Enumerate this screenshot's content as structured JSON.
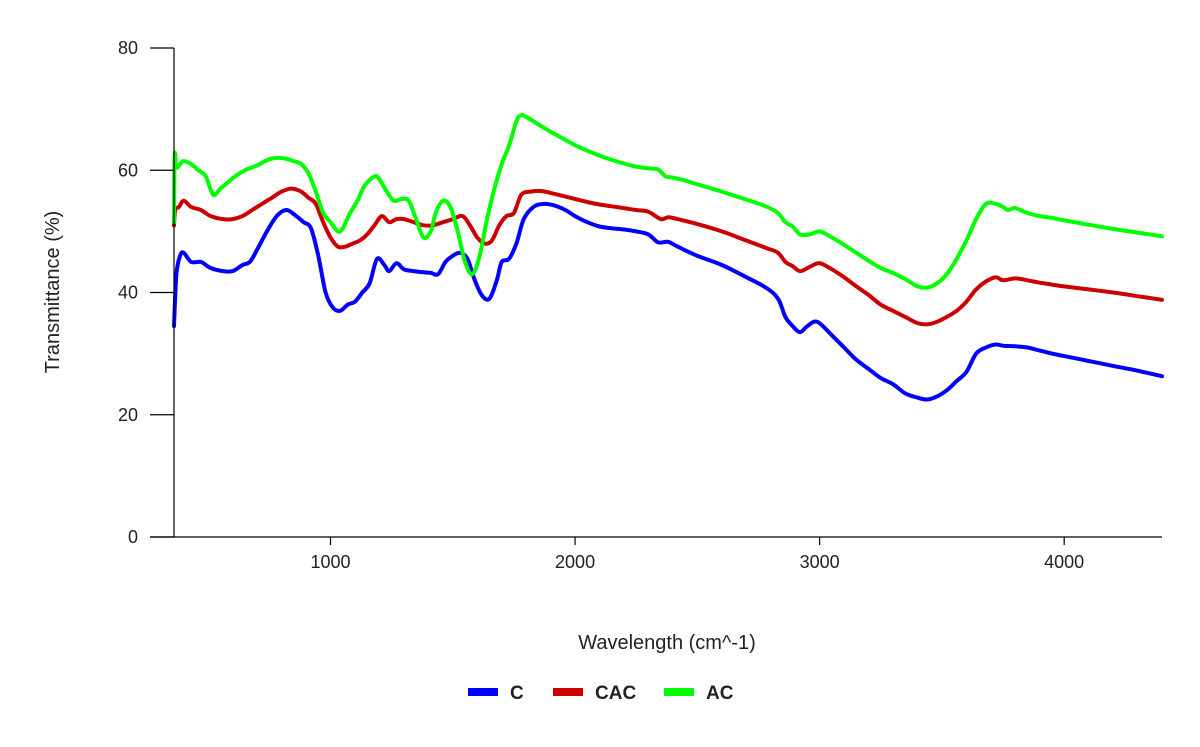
{
  "chart_data": {
    "type": "line",
    "title": "",
    "xlabel": "Wavelength (cm^-1)",
    "ylabel": "Transmittance (%)",
    "xlim": [
      360,
      4400
    ],
    "ylim": [
      0,
      80
    ],
    "x_ticks": [
      1000,
      2000,
      3000,
      4000
    ],
    "y_ticks": [
      0,
      20,
      40,
      60,
      80
    ],
    "grid": false,
    "legend_position": "bottom",
    "series": [
      {
        "name": "C",
        "color": "#0000ff",
        "points": [
          [
            360,
            34.5
          ],
          [
            370,
            43
          ],
          [
            385,
            46
          ],
          [
            400,
            46.5
          ],
          [
            430,
            45
          ],
          [
            470,
            45
          ],
          [
            510,
            44
          ],
          [
            560,
            43.5
          ],
          [
            600,
            43.5
          ],
          [
            640,
            44.5
          ],
          [
            670,
            45
          ],
          [
            700,
            47
          ],
          [
            740,
            50
          ],
          [
            780,
            52.5
          ],
          [
            820,
            53.5
          ],
          [
            860,
            52.5
          ],
          [
            890,
            51.5
          ],
          [
            920,
            50.5
          ],
          [
            950,
            46
          ],
          [
            980,
            40
          ],
          [
            1010,
            37.5
          ],
          [
            1040,
            37
          ],
          [
            1070,
            38
          ],
          [
            1100,
            38.5
          ],
          [
            1130,
            40
          ],
          [
            1160,
            41.5
          ],
          [
            1190,
            45.5
          ],
          [
            1220,
            44.5
          ],
          [
            1240,
            43.5
          ],
          [
            1270,
            44.8
          ],
          [
            1300,
            43.8
          ],
          [
            1340,
            43.5
          ],
          [
            1380,
            43.3
          ],
          [
            1410,
            43.2
          ],
          [
            1440,
            43
          ],
          [
            1470,
            45
          ],
          [
            1500,
            46
          ],
          [
            1530,
            46.5
          ],
          [
            1560,
            45.5
          ],
          [
            1590,
            42
          ],
          [
            1620,
            39.5
          ],
          [
            1650,
            39
          ],
          [
            1680,
            42
          ],
          [
            1700,
            45
          ],
          [
            1730,
            45.5
          ],
          [
            1760,
            48
          ],
          [
            1790,
            52
          ],
          [
            1830,
            54
          ],
          [
            1870,
            54.5
          ],
          [
            1910,
            54.3
          ],
          [
            1960,
            53.5
          ],
          [
            2000,
            52.5
          ],
          [
            2050,
            51.5
          ],
          [
            2100,
            50.8
          ],
          [
            2150,
            50.5
          ],
          [
            2200,
            50.3
          ],
          [
            2250,
            50
          ],
          [
            2300,
            49.5
          ],
          [
            2340,
            48.2
          ],
          [
            2380,
            48.3
          ],
          [
            2420,
            47.5
          ],
          [
            2500,
            46
          ],
          [
            2600,
            44.5
          ],
          [
            2700,
            42.5
          ],
          [
            2780,
            40.8
          ],
          [
            2830,
            39
          ],
          [
            2860,
            36
          ],
          [
            2890,
            34.5
          ],
          [
            2920,
            33.5
          ],
          [
            2950,
            34.5
          ],
          [
            2990,
            35.2
          ],
          [
            3050,
            33
          ],
          [
            3100,
            31
          ],
          [
            3150,
            29
          ],
          [
            3200,
            27.5
          ],
          [
            3250,
            26
          ],
          [
            3300,
            25
          ],
          [
            3350,
            23.5
          ],
          [
            3400,
            22.8
          ],
          [
            3440,
            22.5
          ],
          [
            3480,
            23
          ],
          [
            3520,
            24
          ],
          [
            3560,
            25.5
          ],
          [
            3600,
            27
          ],
          [
            3640,
            30
          ],
          [
            3680,
            31
          ],
          [
            3720,
            31.5
          ],
          [
            3750,
            31.3
          ],
          [
            3800,
            31.2
          ],
          [
            3850,
            31
          ],
          [
            3900,
            30.5
          ],
          [
            3950,
            30
          ],
          [
            4000,
            29.6
          ],
          [
            4100,
            28.8
          ],
          [
            4200,
            28
          ],
          [
            4300,
            27.2
          ],
          [
            4400,
            26.3
          ]
        ]
      },
      {
        "name": "CAC",
        "color": "#cc0000",
        "points": [
          [
            360,
            51
          ],
          [
            365,
            53.5
          ],
          [
            380,
            54
          ],
          [
            400,
            55
          ],
          [
            430,
            54
          ],
          [
            470,
            53.5
          ],
          [
            510,
            52.5
          ],
          [
            560,
            52
          ],
          [
            600,
            52
          ],
          [
            640,
            52.5
          ],
          [
            680,
            53.5
          ],
          [
            720,
            54.5
          ],
          [
            760,
            55.5
          ],
          [
            800,
            56.5
          ],
          [
            840,
            57
          ],
          [
            880,
            56.5
          ],
          [
            910,
            55.5
          ],
          [
            940,
            54.5
          ],
          [
            970,
            51.5
          ],
          [
            1000,
            49
          ],
          [
            1030,
            47.5
          ],
          [
            1060,
            47.5
          ],
          [
            1090,
            48
          ],
          [
            1120,
            48.5
          ],
          [
            1150,
            49.5
          ],
          [
            1180,
            51
          ],
          [
            1210,
            52.5
          ],
          [
            1240,
            51.5
          ],
          [
            1270,
            52
          ],
          [
            1300,
            52
          ],
          [
            1340,
            51.5
          ],
          [
            1380,
            51
          ],
          [
            1420,
            51
          ],
          [
            1460,
            51.5
          ],
          [
            1500,
            52
          ],
          [
            1540,
            52.5
          ],
          [
            1570,
            51
          ],
          [
            1600,
            49
          ],
          [
            1630,
            48
          ],
          [
            1660,
            48.5
          ],
          [
            1690,
            51
          ],
          [
            1720,
            52.5
          ],
          [
            1750,
            53
          ],
          [
            1780,
            56
          ],
          [
            1820,
            56.5
          ],
          [
            1860,
            56.6
          ],
          [
            1900,
            56.3
          ],
          [
            1950,
            55.8
          ],
          [
            2000,
            55.3
          ],
          [
            2050,
            54.8
          ],
          [
            2100,
            54.4
          ],
          [
            2150,
            54.1
          ],
          [
            2200,
            53.8
          ],
          [
            2250,
            53.5
          ],
          [
            2300,
            53.2
          ],
          [
            2350,
            52
          ],
          [
            2380,
            52.3
          ],
          [
            2420,
            52
          ],
          [
            2500,
            51.2
          ],
          [
            2600,
            50
          ],
          [
            2700,
            48.5
          ],
          [
            2780,
            47.3
          ],
          [
            2830,
            46.5
          ],
          [
            2860,
            45
          ],
          [
            2890,
            44.3
          ],
          [
            2920,
            43.5
          ],
          [
            2960,
            44.2
          ],
          [
            3000,
            44.8
          ],
          [
            3050,
            43.8
          ],
          [
            3100,
            42.5
          ],
          [
            3150,
            41
          ],
          [
            3200,
            39.6
          ],
          [
            3250,
            38
          ],
          [
            3300,
            37
          ],
          [
            3350,
            36
          ],
          [
            3400,
            35
          ],
          [
            3440,
            34.8
          ],
          [
            3480,
            35.2
          ],
          [
            3520,
            36
          ],
          [
            3560,
            37
          ],
          [
            3600,
            38.5
          ],
          [
            3640,
            40.5
          ],
          [
            3680,
            41.8
          ],
          [
            3720,
            42.5
          ],
          [
            3750,
            42
          ],
          [
            3800,
            42.3
          ],
          [
            3850,
            42
          ],
          [
            3900,
            41.6
          ],
          [
            3950,
            41.3
          ],
          [
            4000,
            41
          ],
          [
            4100,
            40.5
          ],
          [
            4200,
            40
          ],
          [
            4300,
            39.4
          ],
          [
            4400,
            38.8
          ]
        ]
      },
      {
        "name": "AC",
        "color": "#00ff00",
        "points": [
          [
            360,
            51.5
          ],
          [
            363,
            62.5
          ],
          [
            370,
            60.5
          ],
          [
            385,
            61
          ],
          [
            400,
            61.5
          ],
          [
            430,
            61
          ],
          [
            460,
            60
          ],
          [
            490,
            59
          ],
          [
            520,
            56
          ],
          [
            550,
            57
          ],
          [
            580,
            58
          ],
          [
            610,
            59
          ],
          [
            650,
            60
          ],
          [
            700,
            60.8
          ],
          [
            750,
            61.8
          ],
          [
            800,
            62
          ],
          [
            850,
            61.5
          ],
          [
            880,
            61
          ],
          [
            910,
            59.5
          ],
          [
            940,
            56.5
          ],
          [
            970,
            53
          ],
          [
            1000,
            51.5
          ],
          [
            1030,
            50
          ],
          [
            1050,
            50.5
          ],
          [
            1080,
            53
          ],
          [
            1110,
            55
          ],
          [
            1140,
            57.5
          ],
          [
            1180,
            59
          ],
          [
            1200,
            58.5
          ],
          [
            1230,
            56.5
          ],
          [
            1260,
            55
          ],
          [
            1290,
            55.3
          ],
          [
            1320,
            55
          ],
          [
            1350,
            52
          ],
          [
            1380,
            49
          ],
          [
            1410,
            50
          ],
          [
            1430,
            53
          ],
          [
            1460,
            55
          ],
          [
            1490,
            54
          ],
          [
            1520,
            50
          ],
          [
            1550,
            45
          ],
          [
            1580,
            43
          ],
          [
            1610,
            46
          ],
          [
            1640,
            52
          ],
          [
            1670,
            57
          ],
          [
            1700,
            61
          ],
          [
            1730,
            64
          ],
          [
            1760,
            68
          ],
          [
            1780,
            69
          ],
          [
            1810,
            68.5
          ],
          [
            1850,
            67.5
          ],
          [
            1900,
            66.3
          ],
          [
            1950,
            65.2
          ],
          [
            2000,
            64.1
          ],
          [
            2050,
            63.2
          ],
          [
            2100,
            62.4
          ],
          [
            2150,
            61.7
          ],
          [
            2200,
            61.1
          ],
          [
            2250,
            60.6
          ],
          [
            2300,
            60.3
          ],
          [
            2340,
            60.1
          ],
          [
            2370,
            59
          ],
          [
            2400,
            58.8
          ],
          [
            2450,
            58.3
          ],
          [
            2500,
            57.7
          ],
          [
            2600,
            56.5
          ],
          [
            2700,
            55.2
          ],
          [
            2780,
            54.1
          ],
          [
            2830,
            53
          ],
          [
            2860,
            51.5
          ],
          [
            2890,
            50.8
          ],
          [
            2920,
            49.5
          ],
          [
            2960,
            49.5
          ],
          [
            3000,
            50
          ],
          [
            3050,
            49
          ],
          [
            3100,
            47.8
          ],
          [
            3150,
            46.5
          ],
          [
            3200,
            45.2
          ],
          [
            3250,
            44
          ],
          [
            3300,
            43.2
          ],
          [
            3350,
            42.2
          ],
          [
            3400,
            41
          ],
          [
            3440,
            40.8
          ],
          [
            3480,
            41.5
          ],
          [
            3520,
            43
          ],
          [
            3560,
            45.5
          ],
          [
            3600,
            48.5
          ],
          [
            3640,
            52
          ],
          [
            3680,
            54.5
          ],
          [
            3720,
            54.5
          ],
          [
            3750,
            54
          ],
          [
            3770,
            53.5
          ],
          [
            3800,
            53.8
          ],
          [
            3850,
            53
          ],
          [
            3900,
            52.5
          ],
          [
            3950,
            52.2
          ],
          [
            4000,
            51.8
          ],
          [
            4100,
            51.1
          ],
          [
            4200,
            50.4
          ],
          [
            4300,
            49.8
          ],
          [
            4400,
            49.2
          ]
        ]
      }
    ]
  }
}
